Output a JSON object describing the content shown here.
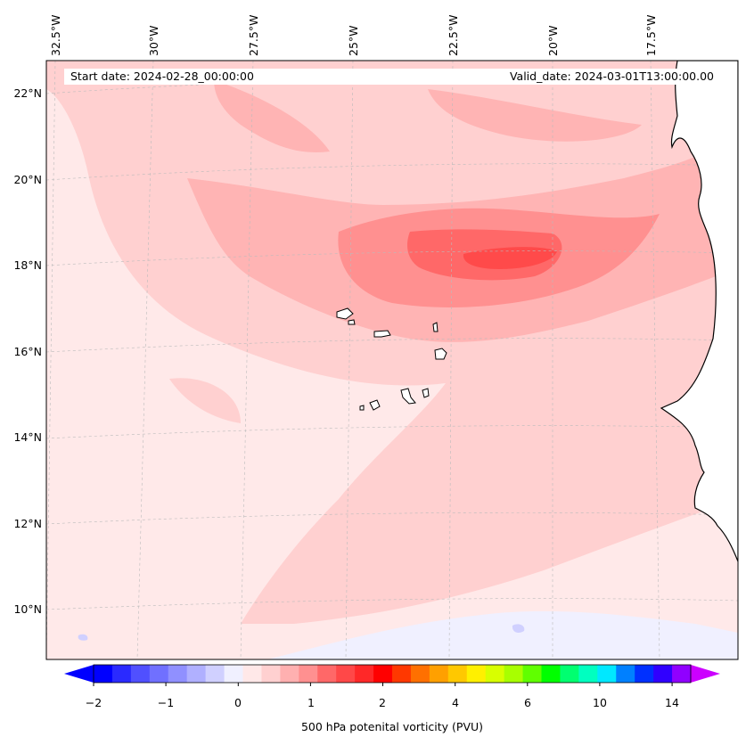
{
  "map": {
    "longitude_labels": [
      "32.5°W",
      "30°W",
      "27.5°W",
      "25°W",
      "22.5°W",
      "20°W",
      "17.5°W"
    ],
    "latitude_labels": [
      "22°N",
      "20°N",
      "18°N",
      "16°N",
      "14°N",
      "12°N",
      "10°N"
    ],
    "start_date": "Start date: 2024-02-28_00:00:00",
    "valid_date": "Valid_date: 2024-03-01T13:00:00.00",
    "field": "500 hPa potential vorticity",
    "coastline_color": "#000000",
    "gridlines": true
  },
  "colorbar": {
    "title": "500 hPa potenital vorticity (PVU)",
    "ticks": [
      "−2",
      "−1",
      "0",
      "1",
      "2",
      "4",
      "6",
      "10",
      "14"
    ],
    "colors": [
      "#0000ff",
      "#2a2aff",
      "#5050ff",
      "#7070ff",
      "#9090ff",
      "#b0b0ff",
      "#d0d0ff",
      "#f0f0ff",
      "#ffe8e8",
      "#ffd0d0",
      "#ffb0b0",
      "#ff9090",
      "#ff6868",
      "#ff4848",
      "#ff2828",
      "#ff0000",
      "#ff3800",
      "#ff7000",
      "#ffa000",
      "#ffc800",
      "#fff000",
      "#d8ff00",
      "#a8ff00",
      "#60ff00",
      "#00ff00",
      "#00ff70",
      "#00ffc0",
      "#00e8ff",
      "#0080ff",
      "#0030ff",
      "#3000ff",
      "#9000ff"
    ],
    "under_color": "#0000ff",
    "over_color": "#cc00ff",
    "extend": "both"
  }
}
